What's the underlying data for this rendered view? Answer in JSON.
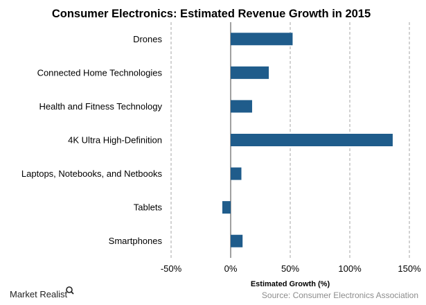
{
  "chart_data": {
    "type": "bar",
    "orientation": "horizontal",
    "title": "Consumer Electronics: Estimated Revenue Growth in 2015",
    "categories": [
      "Drones",
      "Connected Home Technologies",
      "Health and Fitness Technology",
      "4K Ultra High-Definition",
      "Laptops, Notebooks, and Netbooks",
      "Tablets",
      "Smartphones"
    ],
    "values": [
      52,
      32,
      18,
      136,
      9,
      -7,
      10
    ],
    "xlabel": "Estimated Growth (%)",
    "ylabel": "",
    "xlim": [
      -50,
      150
    ],
    "xticks": [
      -50,
      0,
      50,
      100,
      150
    ],
    "tick_labels": [
      "-50%",
      "0%",
      "50%",
      "100%",
      "150%"
    ],
    "grid": "vertical dashed",
    "bar_color": "#1F5C8B"
  },
  "footer": {
    "brand": "Market Realist",
    "source": "Source: Consumer Electronics Association"
  },
  "colors": {
    "bar": "#1F5C8B",
    "grid": "#A6A6A6",
    "source_text": "#8C8C8C"
  }
}
